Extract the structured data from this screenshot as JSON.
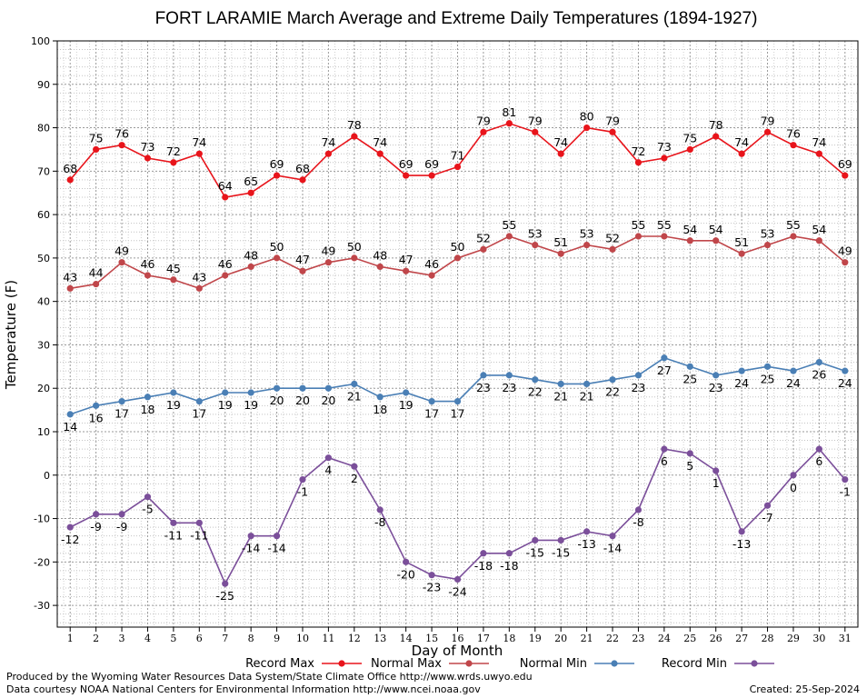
{
  "chart_data": {
    "type": "line",
    "title": "FORT LARAMIE March Average and Extreme Daily Temperatures (1894-1927)",
    "xlabel": "Day of Month",
    "ylabel": "Temperature (F)",
    "x": [
      1,
      2,
      3,
      4,
      5,
      6,
      7,
      8,
      9,
      10,
      11,
      12,
      13,
      14,
      15,
      16,
      17,
      18,
      19,
      20,
      21,
      22,
      23,
      24,
      25,
      26,
      27,
      28,
      29,
      30,
      31
    ],
    "ylim": [
      -35,
      100
    ],
    "yticks": [
      -30,
      -20,
      -10,
      0,
      10,
      20,
      30,
      40,
      50,
      60,
      70,
      80,
      90,
      100
    ],
    "grid": true,
    "legend_position": "bottom",
    "series": [
      {
        "name": "Record Max",
        "color": "#e8141b",
        "label_position": "above",
        "values": [
          68,
          75,
          76,
          73,
          72,
          74,
          64,
          65,
          69,
          68,
          74,
          78,
          74,
          69,
          69,
          71,
          79,
          81,
          79,
          74,
          80,
          79,
          72,
          73,
          75,
          78,
          74,
          79,
          76,
          74,
          69
        ]
      },
      {
        "name": "Normal Max",
        "color": "#c0464a",
        "label_position": "above",
        "values": [
          43,
          44,
          49,
          46,
          45,
          43,
          46,
          48,
          50,
          47,
          49,
          50,
          48,
          47,
          46,
          50,
          52,
          55,
          53,
          51,
          53,
          52,
          55,
          55,
          54,
          54,
          51,
          53,
          55,
          54,
          49
        ]
      },
      {
        "name": "Normal Min",
        "color": "#4a7fb5",
        "label_position": "below",
        "values": [
          14,
          16,
          17,
          18,
          19,
          17,
          19,
          19,
          20,
          20,
          20,
          21,
          18,
          19,
          17,
          17,
          23,
          23,
          22,
          21,
          21,
          22,
          23,
          27,
          25,
          23,
          24,
          25,
          24,
          26,
          24
        ]
      },
      {
        "name": "Record Min",
        "color": "#7b4f9a",
        "label_position": "below",
        "values": [
          -12,
          -9,
          -9,
          -5,
          -11,
          -11,
          -25,
          -14,
          -14,
          -1,
          4,
          2,
          -8,
          -20,
          -23,
          -24,
          -18,
          -18,
          -15,
          -15,
          -13,
          -14,
          -8,
          6,
          5,
          1,
          -13,
          -7,
          0,
          6,
          -1
        ]
      }
    ]
  },
  "footer": {
    "produced_by": "Produced by the Wyoming Water Resources Data System/State Climate Office http://www.wrds.uwyo.edu",
    "data_courtesy": "Data courtesy NOAA National Centers for Environmental Information http://www.ncei.noaa.gov",
    "created": "Created:  25-Sep-2024"
  }
}
